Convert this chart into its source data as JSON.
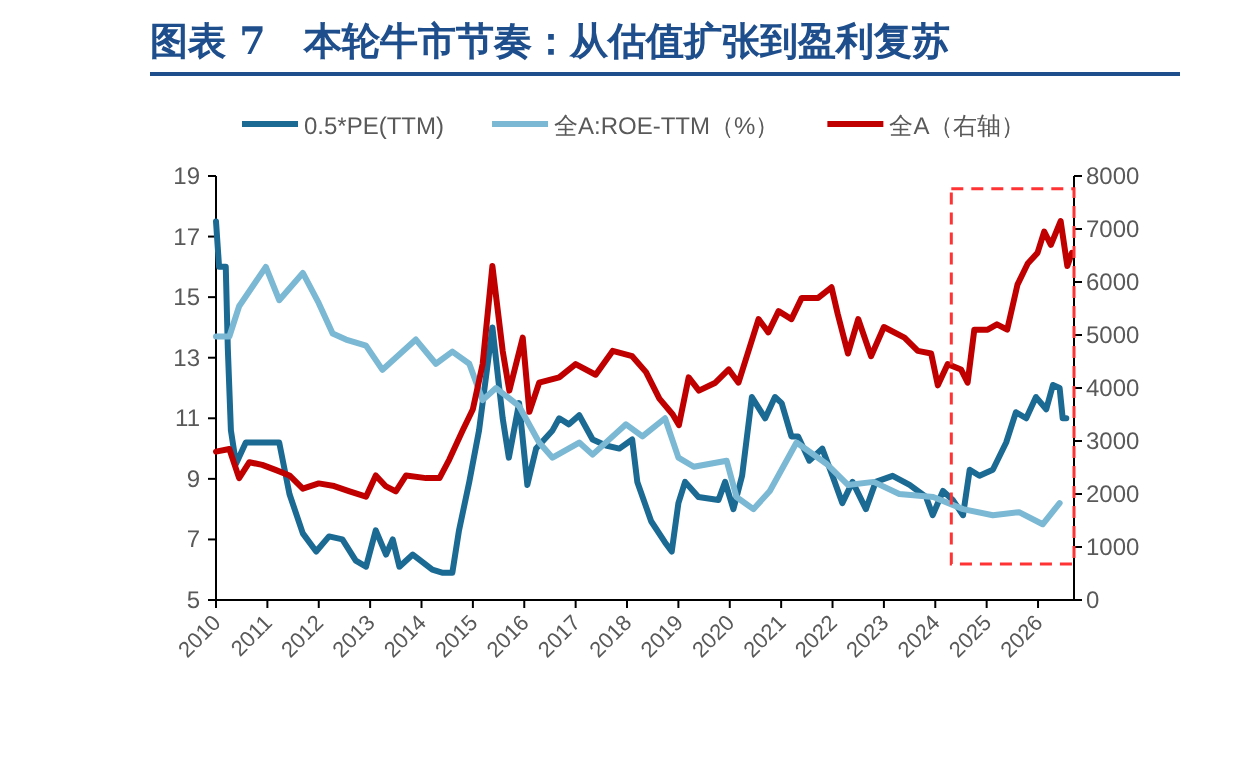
{
  "chart_data": {
    "type": "line",
    "title": "图表 7　本轮牛市节奏：从估值扩张到盈利复苏",
    "series": [
      {
        "name": "0.5*PE(TTM)",
        "color": "#1a6a93",
        "x": [
          2010.0,
          2010.06,
          2010.19,
          2010.23,
          2010.29,
          2010.39,
          2010.58,
          2010.85,
          2011.23,
          2011.43,
          2011.69,
          2011.95,
          2012.2,
          2012.46,
          2012.72,
          2012.92,
          2013.11,
          2013.31,
          2013.44,
          2013.57,
          2013.83,
          2014.21,
          2014.4,
          2014.6,
          2014.73,
          2014.93,
          2015.12,
          2015.38,
          2015.58,
          2015.7,
          2015.9,
          2016.06,
          2016.23,
          2016.55,
          2016.68,
          2016.87,
          2017.07,
          2017.33,
          2017.59,
          2017.85,
          2018.1,
          2018.2,
          2018.47,
          2018.74,
          2018.87,
          2019.0,
          2019.13,
          2019.39,
          2019.78,
          2019.91,
          2020.07,
          2020.24,
          2020.43,
          2020.69,
          2020.88,
          2021.01,
          2021.2,
          2021.33,
          2021.55,
          2021.8,
          2022.0,
          2022.19,
          2022.39,
          2022.65,
          2022.84,
          2023.17,
          2023.5,
          2023.82,
          2023.95,
          2024.15,
          2024.34,
          2024.54,
          2024.67,
          2024.86,
          2025.12,
          2025.38,
          2025.57,
          2025.77,
          2025.96,
          2026.16,
          2026.29,
          2026.42,
          2026.48,
          2026.55
        ],
        "values": [
          17.5,
          16.0,
          16.0,
          13.3,
          10.6,
          9.5,
          10.2,
          10.2,
          10.2,
          8.5,
          7.2,
          6.6,
          7.1,
          7.0,
          6.3,
          6.1,
          7.3,
          6.5,
          7.0,
          6.1,
          6.5,
          6.0,
          5.9,
          5.9,
          7.3,
          8.9,
          10.6,
          14.0,
          11.0,
          9.7,
          11.5,
          8.8,
          10.0,
          10.6,
          11.0,
          10.8,
          11.1,
          10.3,
          10.1,
          10.0,
          10.3,
          8.9,
          7.6,
          6.9,
          6.6,
          8.2,
          8.9,
          8.4,
          8.3,
          8.9,
          8.0,
          9.1,
          11.7,
          11.0,
          11.7,
          11.5,
          10.4,
          10.4,
          9.6,
          10.0,
          9.1,
          8.2,
          8.9,
          8.0,
          8.9,
          9.1,
          8.8,
          8.4,
          7.8,
          8.6,
          8.3,
          7.8,
          9.3,
          9.1,
          9.3,
          10.2,
          11.2,
          11.0,
          11.7,
          11.3,
          12.1,
          12.0,
          11.0,
          11.0
        ]
      },
      {
        "name": "全A:ROE-TTM（%）",
        "color": "#7ab8d3",
        "x": [
          2010.0,
          2010.26,
          2010.45,
          2010.97,
          2011.23,
          2011.69,
          2012.0,
          2012.27,
          2012.53,
          2012.92,
          2013.24,
          2013.89,
          2014.28,
          2014.6,
          2014.93,
          2015.19,
          2015.45,
          2015.9,
          2016.29,
          2016.55,
          2017.07,
          2017.33,
          2017.98,
          2018.3,
          2018.74,
          2019.0,
          2019.3,
          2019.94,
          2020.13,
          2020.46,
          2020.78,
          2021.3,
          2021.88,
          2022.3,
          2022.8,
          2023.3,
          2023.96,
          2024.54,
          2025.12,
          2025.63,
          2026.09,
          2026.42
        ],
        "values": [
          13.7,
          13.7,
          14.7,
          16.0,
          14.9,
          15.8,
          14.8,
          13.8,
          13.6,
          13.4,
          12.6,
          13.6,
          12.8,
          13.2,
          12.8,
          11.6,
          12.0,
          11.4,
          10.2,
          9.7,
          10.2,
          9.8,
          10.8,
          10.4,
          11.0,
          9.7,
          9.4,
          9.6,
          8.4,
          8.0,
          8.6,
          10.2,
          9.5,
          8.8,
          8.9,
          8.5,
          8.4,
          8.0,
          7.8,
          7.9,
          7.5,
          8.2
        ]
      },
      {
        "name": "全A（右轴）",
        "color": "#c00000",
        "axis": "y2",
        "x": [
          2010.0,
          2010.26,
          2010.45,
          2010.65,
          2010.9,
          2011.17,
          2011.43,
          2011.69,
          2012.0,
          2012.3,
          2012.6,
          2012.92,
          2013.11,
          2013.3,
          2013.5,
          2013.7,
          2014.09,
          2014.35,
          2014.54,
          2014.8,
          2015.0,
          2015.19,
          2015.38,
          2015.58,
          2015.71,
          2015.97,
          2016.1,
          2016.29,
          2016.68,
          2017.0,
          2017.39,
          2017.72,
          2018.1,
          2018.37,
          2018.63,
          2018.89,
          2019.01,
          2019.2,
          2019.4,
          2019.72,
          2019.98,
          2020.17,
          2020.56,
          2020.75,
          2020.95,
          2021.2,
          2021.4,
          2021.72,
          2021.98,
          2022.1,
          2022.3,
          2022.5,
          2022.75,
          2023.0,
          2023.4,
          2023.66,
          2023.92,
          2024.05,
          2024.24,
          2024.5,
          2024.63,
          2024.76,
          2025.02,
          2025.2,
          2025.4,
          2025.6,
          2025.8,
          2025.99,
          2026.12,
          2026.25,
          2026.44,
          2026.57,
          2026.66
        ],
        "values": [
          2800,
          2850,
          2300,
          2600,
          2550,
          2450,
          2350,
          2100,
          2200,
          2150,
          2050,
          1950,
          2350,
          2150,
          2050,
          2350,
          2300,
          2300,
          2650,
          3200,
          3600,
          4450,
          6300,
          4700,
          3950,
          4950,
          3550,
          4100,
          4200,
          4450,
          4250,
          4700,
          4600,
          4300,
          3800,
          3500,
          3300,
          4200,
          3950,
          4100,
          4350,
          4100,
          5300,
          5050,
          5450,
          5300,
          5700,
          5700,
          5900,
          5400,
          4650,
          5300,
          4600,
          5150,
          4950,
          4700,
          4650,
          4050,
          4450,
          4350,
          4100,
          5100,
          5100,
          5200,
          5100,
          5950,
          6350,
          6550,
          6950,
          6700,
          7150,
          6300,
          6550
        ]
      }
    ],
    "xlim": [
      2010,
      2026.7
    ],
    "xticks": [
      2010,
      2011,
      2012,
      2013,
      2014,
      2015,
      2016,
      2017,
      2018,
      2019,
      2020,
      2021,
      2022,
      2023,
      2024,
      2025,
      2026
    ],
    "ylim": [
      5,
      19
    ],
    "yticks": [
      5,
      7,
      9,
      11,
      13,
      15,
      17,
      19
    ],
    "y2lim": [
      0,
      8000
    ],
    "y2ticks": [
      0,
      1000,
      2000,
      3000,
      4000,
      5000,
      6000,
      7000,
      8000
    ],
    "legend": "top",
    "grid": false
  }
}
